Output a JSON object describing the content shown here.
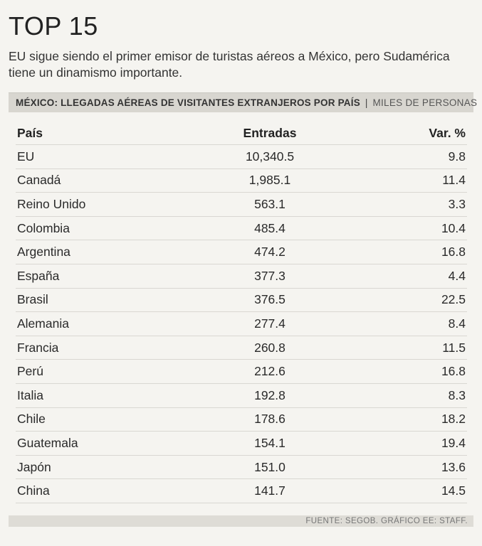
{
  "title": "TOP 15",
  "subtitle": "EU sigue siendo el primer emisor de turistas aéreos a México, pero Sudamérica tiene un dinamismo importante.",
  "header": {
    "main": "MÉXICO: LLEGADAS AÉREAS DE VISITANTES EXTRANJEROS POR PAÍS",
    "separator": "|",
    "unit": "MILES DE PERSONAS"
  },
  "chart_data": {
    "type": "table",
    "columns": [
      "País",
      "Entradas",
      "Var. %"
    ],
    "rows": [
      {
        "country": "EU",
        "entries": "10,340.5",
        "var": "9.8"
      },
      {
        "country": "Canadá",
        "entries": "1,985.1",
        "var": "11.4"
      },
      {
        "country": "Reino Unido",
        "entries": "563.1",
        "var": "3.3"
      },
      {
        "country": "Colombia",
        "entries": "485.4",
        "var": "10.4"
      },
      {
        "country": "Argentina",
        "entries": "474.2",
        "var": "16.8"
      },
      {
        "country": "España",
        "entries": "377.3",
        "var": "4.4"
      },
      {
        "country": "Brasil",
        "entries": "376.5",
        "var": "22.5"
      },
      {
        "country": "Alemania",
        "entries": "277.4",
        "var": "8.4"
      },
      {
        "country": "Francia",
        "entries": "260.8",
        "var": "11.5"
      },
      {
        "country": "Perú",
        "entries": "212.6",
        "var": "16.8"
      },
      {
        "country": "Italia",
        "entries": "192.8",
        "var": "8.3"
      },
      {
        "country": "Chile",
        "entries": "178.6",
        "var": "18.2"
      },
      {
        "country": "Guatemala",
        "entries": "154.1",
        "var": "19.4"
      },
      {
        "country": "Japón",
        "entries": "151.0",
        "var": "13.6"
      },
      {
        "country": "China",
        "entries": "141.7",
        "var": "14.5"
      }
    ]
  },
  "footer": "FUENTE: SEGOB. GRÁFICO EE: STAFF."
}
